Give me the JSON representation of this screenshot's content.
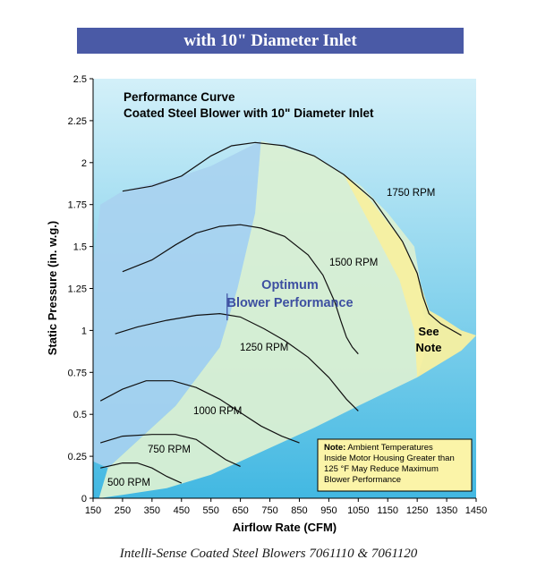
{
  "banner": {
    "text": "with 10\" Diameter Inlet"
  },
  "caption": {
    "text": "Intelli-Sense Coated Steel Blowers 7061110 & 7061120"
  },
  "colors": {
    "banner": "#4a5aa6",
    "plot_top": "#d3f0f9",
    "plot_bottom": "#42b8e2",
    "blue_region": "#a9d2f0",
    "optimum_region": "#d9efd3",
    "note_region": "#f7efa0",
    "note_box": "#fbf4a8",
    "optimum_text": "#3d4fa1"
  },
  "chart_data": {
    "type": "line",
    "title": "Performance Curve",
    "subtitle": "Coated Steel Blower with 10\" Diameter Inlet",
    "xlabel": "Airflow Rate (CFM)",
    "ylabel": "Static Pressure (in. w.g.)",
    "xlim": [
      150,
      1450
    ],
    "ylim": [
      0,
      2.5
    ],
    "x_ticks": [
      "150",
      "250",
      "350",
      "450",
      "550",
      "650",
      "750",
      "850",
      "950",
      "1050",
      "1150",
      "1250",
      "1350",
      "1450"
    ],
    "y_ticks": [
      "0",
      "0.25",
      "0.5",
      "0.75",
      "1",
      "1.25",
      "1.5",
      "1.75",
      "2",
      "2.25",
      "2.5"
    ],
    "grid": false,
    "legend": "none",
    "series": [
      {
        "name": "500 RPM",
        "x": [
          175,
          250,
          300,
          350,
          400,
          450
        ],
        "y": [
          0.18,
          0.21,
          0.21,
          0.18,
          0.13,
          0.09
        ]
      },
      {
        "name": "750 RPM",
        "x": [
          175,
          250,
          350,
          430,
          500,
          550,
          600,
          650
        ],
        "y": [
          0.33,
          0.37,
          0.38,
          0.38,
          0.35,
          0.29,
          0.23,
          0.19
        ]
      },
      {
        "name": "1000 RPM",
        "x": [
          175,
          250,
          330,
          420,
          500,
          580,
          650,
          720,
          790,
          850
        ],
        "y": [
          0.58,
          0.65,
          0.7,
          0.7,
          0.66,
          0.59,
          0.51,
          0.43,
          0.37,
          0.33
        ]
      },
      {
        "name": "1250 RPM",
        "x": [
          225,
          300,
          400,
          500,
          580,
          650,
          730,
          800,
          880,
          950,
          1010,
          1050
        ],
        "y": [
          0.98,
          1.02,
          1.06,
          1.09,
          1.1,
          1.08,
          1.01,
          0.94,
          0.84,
          0.72,
          0.59,
          0.52
        ]
      },
      {
        "name": "1500 RPM",
        "x": [
          250,
          350,
          430,
          500,
          580,
          650,
          720,
          800,
          880,
          930,
          970,
          990,
          1010,
          1030,
          1050
        ],
        "y": [
          1.35,
          1.42,
          1.51,
          1.58,
          1.62,
          1.63,
          1.61,
          1.56,
          1.45,
          1.33,
          1.17,
          1.06,
          0.96,
          0.9,
          0.86
        ]
      },
      {
        "name": "1750 RPM",
        "x": [
          250,
          350,
          450,
          550,
          620,
          700,
          800,
          900,
          1000,
          1100,
          1200,
          1250,
          1270,
          1290,
          1310,
          1330,
          1400
        ],
        "y": [
          1.83,
          1.86,
          1.92,
          2.04,
          2.1,
          2.12,
          2.1,
          2.04,
          1.93,
          1.78,
          1.53,
          1.34,
          1.2,
          1.1,
          1.07,
          1.04,
          0.97
        ]
      }
    ],
    "annotations": {
      "optimum": [
        "Optimum",
        "Blower Performance"
      ],
      "see_note": [
        "See",
        "Note"
      ],
      "note_bold": "Note:",
      "note_lines": [
        " Ambient Temperatures",
        "Inside Motor Housing Greater than",
        "125 °F May Reduce Maximum",
        "Blower Performance"
      ]
    }
  }
}
